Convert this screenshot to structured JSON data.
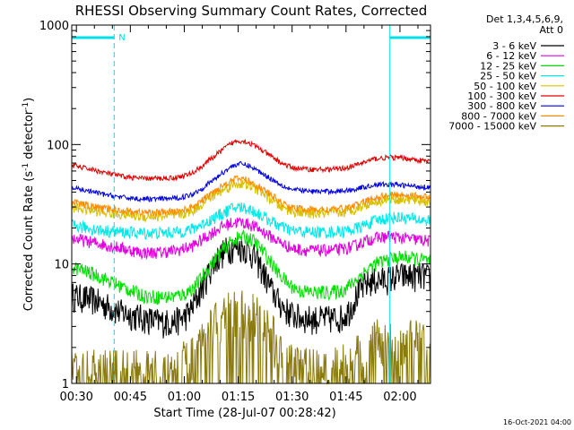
{
  "chart_data": {
    "type": "line",
    "title": "RHESSI Observing Summary Count Rates, Corrected",
    "xlabel": "Start Time (28-Jul-07 00:28:42)",
    "ylabel_main": "Corrected Count Rate (s",
    "ylabel_sup1": "-1",
    "ylabel_mid": " detector",
    "ylabel_sup2": "-1",
    "ylabel_end": ")",
    "x_unit": "minutes after 00:00",
    "xlim": [
      28.7,
      128.5
    ],
    "ylim": [
      1,
      1000
    ],
    "y_scale": "log",
    "x_ticks": [
      {
        "value": 30,
        "label": "00:30"
      },
      {
        "value": 45,
        "label": "00:45"
      },
      {
        "value": 60,
        "label": "01:00"
      },
      {
        "value": 75,
        "label": "01:15"
      },
      {
        "value": 90,
        "label": "01:30"
      },
      {
        "value": 105,
        "label": "01:45"
      },
      {
        "value": 120,
        "label": "02:00"
      }
    ],
    "y_ticks": [
      {
        "value": 1,
        "label": "1"
      },
      {
        "value": 10,
        "label": "10"
      },
      {
        "value": 100,
        "label": "100"
      },
      {
        "value": 1000,
        "label": "1000"
      }
    ],
    "legend_header": [
      "Det 1,3,4,5,6,9,",
      "Att 0"
    ],
    "legend_position": "right",
    "series": [
      {
        "name": "3 - 6 keV",
        "color": "#000000",
        "x": [
          28.7,
          35,
          42,
          48,
          53,
          56,
          58,
          60,
          62,
          64,
          66,
          68,
          70,
          72,
          74,
          76,
          78,
          80,
          82,
          84,
          86,
          88,
          90,
          92,
          96,
          100,
          104,
          106,
          108,
          110,
          112,
          116,
          120,
          124,
          127,
          128.5
        ],
        "values": [
          5.5,
          5,
          4,
          3.6,
          3.3,
          3.3,
          3.4,
          3.6,
          4.2,
          5.5,
          7.5,
          10,
          12,
          13.5,
          14,
          14,
          13,
          11,
          8.5,
          6.3,
          5,
          4.2,
          3.8,
          3.6,
          3.5,
          3.5,
          3.6,
          4.2,
          5.5,
          6.6,
          7.2,
          7.5,
          8,
          8,
          8,
          7.5
        ]
      },
      {
        "name": "6 - 12 keV",
        "color": "#e000e0",
        "x": [
          28.7,
          33,
          38,
          43,
          48,
          53,
          58,
          62,
          65,
          68,
          71,
          73,
          75,
          77,
          79,
          81,
          84,
          87,
          90,
          95,
          100,
          104,
          107,
          110,
          113,
          117,
          121,
          125,
          128.5
        ],
        "values": [
          16.5,
          15.5,
          14.5,
          13.5,
          12.5,
          12.5,
          13,
          14,
          16,
          18.5,
          21,
          22,
          22.5,
          22,
          21,
          19.5,
          17,
          15,
          13.5,
          13,
          13,
          13.3,
          14,
          15.5,
          16.5,
          17,
          16.5,
          16,
          15.5
        ]
      },
      {
        "name": "12 - 25 keV",
        "color": "#00e000",
        "x": [
          28.7,
          32,
          36,
          40,
          44,
          48,
          52,
          56,
          60,
          63,
          66,
          69,
          72,
          74,
          76,
          78,
          80,
          83,
          86,
          89,
          92,
          96,
          100,
          104,
          107,
          110,
          113,
          117,
          121,
          125,
          128.5
        ],
        "values": [
          9.5,
          8.8,
          8,
          7,
          6.2,
          5.5,
          5.3,
          5.3,
          5.6,
          6.5,
          8.5,
          11.5,
          14.5,
          16,
          17,
          16.5,
          15,
          11.5,
          8.5,
          6.8,
          6,
          5.8,
          5.8,
          6,
          7,
          8.5,
          10,
          11,
          11.5,
          11,
          10.5
        ]
      },
      {
        "name": "25 - 50 keV",
        "color": "#00e8e8",
        "x": [
          28.7,
          33,
          38,
          43,
          48,
          53,
          58,
          62,
          65,
          68,
          71,
          73,
          75,
          77,
          79,
          81,
          84,
          87,
          90,
          95,
          100,
          104,
          107,
          110,
          113,
          117,
          121,
          125,
          128.5
        ],
        "values": [
          21,
          20,
          19,
          18.5,
          18.2,
          18.2,
          18.5,
          19.5,
          21.5,
          24,
          27,
          29,
          30,
          29.5,
          28,
          26,
          23,
          20.5,
          19,
          18.5,
          18.5,
          18.8,
          19.5,
          21,
          23,
          24.5,
          24.5,
          23.5,
          23
        ]
      },
      {
        "name": "50 - 100 keV",
        "color": "#d8c000",
        "x": [
          28.7,
          33,
          38,
          43,
          48,
          53,
          58,
          62,
          65,
          68,
          71,
          73,
          75,
          77,
          79,
          81,
          84,
          87,
          90,
          95,
          100,
          104,
          107,
          110,
          113,
          117,
          121,
          125,
          128.5
        ],
        "values": [
          30,
          28.5,
          27,
          26,
          25,
          25,
          25.5,
          27.5,
          32,
          37,
          42,
          45.5,
          47,
          46.5,
          44,
          41,
          35,
          30,
          27.5,
          26.5,
          26.5,
          27,
          28.5,
          31,
          33.5,
          35,
          35,
          34,
          33
        ]
      },
      {
        "name": "100 - 300 keV",
        "color": "#e00000",
        "x": [
          28.7,
          33,
          38,
          43,
          48,
          53,
          58,
          62,
          65,
          68,
          71,
          73,
          75,
          77,
          79,
          81,
          84,
          87,
          90,
          95,
          100,
          104,
          107,
          110,
          113,
          117,
          121,
          125,
          128.5
        ],
        "values": [
          67,
          63,
          58,
          54,
          52,
          52,
          53,
          57,
          66,
          78,
          92,
          102,
          108,
          106,
          100,
          92,
          80,
          70,
          64,
          62,
          62,
          63,
          66,
          71,
          76,
          78,
          77,
          74,
          72
        ]
      },
      {
        "name": "300 - 800 keV",
        "color": "#0000e0",
        "x": [
          28.7,
          33,
          38,
          43,
          48,
          53,
          58,
          62,
          65,
          68,
          71,
          73,
          75,
          77,
          79,
          81,
          84,
          87,
          90,
          95,
          100,
          104,
          107,
          110,
          113,
          117,
          121,
          125,
          128.5
        ],
        "values": [
          43,
          41,
          38,
          36,
          35,
          35,
          35.5,
          38,
          43,
          50,
          59,
          65,
          69,
          68,
          64,
          59,
          52,
          46,
          42,
          40.5,
          40.5,
          41,
          42,
          44,
          46,
          46.5,
          45.5,
          44.5,
          44
        ]
      },
      {
        "name": "800 - 7000 keV",
        "color": "#ff8c00",
        "x": [
          28.7,
          33,
          38,
          43,
          48,
          53,
          58,
          62,
          65,
          68,
          71,
          73,
          75,
          77,
          79,
          81,
          84,
          87,
          90,
          95,
          100,
          104,
          107,
          110,
          113,
          117,
          121,
          125,
          128.5
        ],
        "values": [
          33,
          31,
          29,
          28,
          27,
          27,
          27.5,
          29.5,
          34,
          40,
          46,
          50,
          52,
          51,
          48,
          44,
          38,
          32.5,
          29.5,
          28.5,
          28.5,
          29,
          30.5,
          33,
          36,
          38,
          38,
          37,
          36
        ]
      },
      {
        "name": "7000 - 15000 keV",
        "color": "#8b7b0c",
        "x": [
          28.7,
          40,
          52,
          58,
          62,
          66,
          68,
          70,
          72,
          74,
          76,
          78,
          80,
          82,
          84,
          86,
          88,
          90,
          100,
          106,
          110,
          114,
          118,
          122,
          126,
          128.5
        ],
        "values": [
          1.2,
          1.2,
          1.2,
          1.3,
          1.6,
          2.2,
          2.8,
          3.3,
          3.6,
          3.8,
          3.8,
          3.7,
          3.4,
          3,
          2.5,
          2,
          1.6,
          1.3,
          1.2,
          1.4,
          1.8,
          2.2,
          2.4,
          2.3,
          2,
          1.8
        ]
      }
    ],
    "night_intervals": [
      {
        "start": 28.7,
        "end": 40.5,
        "label": ""
      },
      {
        "start": 117.2,
        "end": 128.5,
        "label": ""
      }
    ],
    "flag_label": "N",
    "timestamp": "16-Oct-2021 04:00"
  }
}
